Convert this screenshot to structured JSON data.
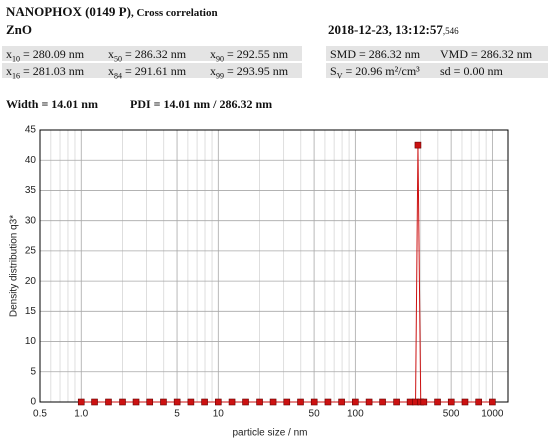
{
  "header": {
    "title": "NANOPHOX (0149 P)",
    "subtitle": ", Cross correlation",
    "sample": "ZnO",
    "datetime": "2018-12-23, 13:12:57",
    "datetime_ms": ",546",
    "stats_left": [
      [
        {
          "sym": "x",
          "sub": "10",
          "value": "= 280.09 nm"
        },
        {
          "sym": "x",
          "sub": "50",
          "value": "= 286.32 nm"
        },
        {
          "sym": "x",
          "sub": "90",
          "value": "= 292.55 nm"
        }
      ],
      [
        {
          "sym": "x",
          "sub": "16",
          "value": "= 281.03 nm"
        },
        {
          "sym": "x",
          "sub": "84",
          "value": "= 291.61 nm"
        },
        {
          "sym": "x",
          "sub": "99",
          "value": "= 293.95 nm"
        }
      ]
    ],
    "stats_right": [
      [
        {
          "sym": "SMD",
          "value": "= 286.32 nm"
        },
        {
          "sym": "VMD",
          "value": "= 286.32 nm"
        }
      ],
      [
        {
          "sym": "S",
          "sub": "V",
          "value": "= 20.96 m²/cm³"
        },
        {
          "sym": "sd",
          "value": "= 0.00 nm"
        }
      ]
    ],
    "width": "Width = 14.01 nm",
    "pdi": "PDI = 14.01 nm / 286.32 nm"
  },
  "chart_data": {
    "type": "line",
    "xlabel": "particle size / nm",
    "ylabel": "Density distribution q3*",
    "x": [
      1.0,
      1.25,
      1.58,
      2.0,
      2.51,
      3.16,
      3.98,
      5.01,
      6.31,
      7.94,
      10,
      12.6,
      15.8,
      20,
      25.1,
      31.6,
      39.8,
      50.1,
      63.1,
      79.4,
      100,
      126,
      158,
      200,
      251,
      275,
      286.32,
      300,
      316,
      398,
      501,
      631,
      794,
      1000
    ],
    "series": [
      {
        "color": "#cc1111",
        "values": [
          0,
          0,
          0,
          0,
          0,
          0,
          0,
          0,
          0,
          0,
          0,
          0,
          0,
          0,
          0,
          0,
          0,
          0,
          0,
          0,
          0,
          0,
          0,
          0,
          0,
          0,
          42.5,
          0,
          0,
          0,
          0,
          0,
          0,
          0
        ]
      }
    ],
    "xscale": "log",
    "xlim": [
      0.5,
      1300
    ],
    "ylim": [
      0,
      45
    ],
    "xticks": [
      0.5,
      {
        "value": 1,
        "label": "1.0"
      },
      5,
      10,
      50,
      100,
      500,
      1000
    ],
    "xminorticks": [
      0.6,
      0.7,
      0.8,
      0.9,
      2,
      3,
      4,
      6,
      7,
      8,
      9,
      20,
      30,
      40,
      60,
      70,
      80,
      90,
      200,
      300,
      400,
      600,
      700,
      800,
      900
    ],
    "yticks": [
      0,
      5,
      10,
      15,
      20,
      25,
      30,
      35,
      40,
      45
    ],
    "grid": true
  }
}
